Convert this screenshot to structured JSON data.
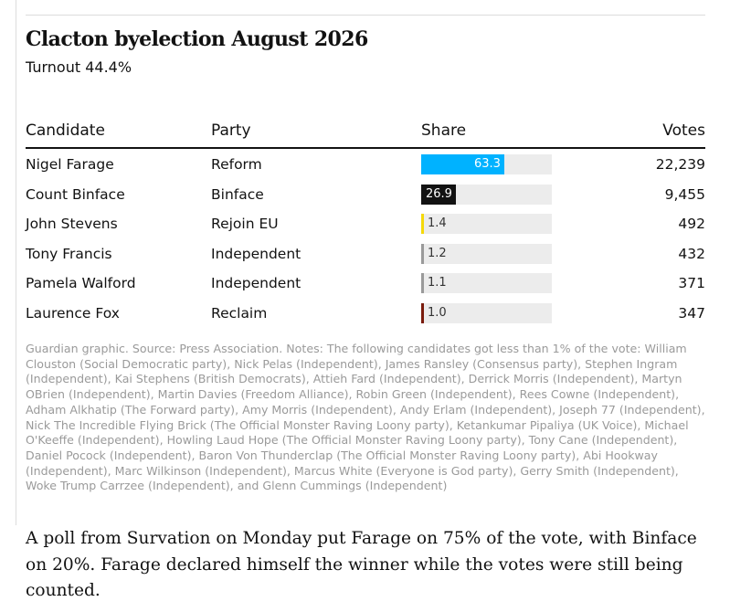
{
  "graphic": {
    "title": "Clacton byelection August 2026",
    "subtitle": "Turnout 44.4%",
    "notes": "Guardian graphic. Source: Press Association. Notes: The following candidates got less than 1% of the vote: William Clouston (Social Democratic party), Nick Pelas (Independent), James Ransley (Consensus party), Stephen Ingram (Independent), Kai Stephens (British Democrats), Attieh Fard (Independent), Derrick Morris (Independent), Martyn OBrien (Independent), Martin Davies (Freedom Alliance), Robin Green (Independent), Rees Cowne (Independent), Adham Alkhatip (The Forward party), Amy Morris (Independent), Andy Erlam (Independent), Joseph 77 (Independent), Nick The Incredible Flying Brick (The Official Monster Raving Loony party), Ketankumar Pipaliya (UK Voice), Michael O'Keeffe (Independent), Howling Laud Hope (The Official Monster Raving Loony party), Tony Cane (Independent), Daniel Pocock (Independent), Baron Von Thunderclap (The Official Monster Raving Loony party), Abi Hookway (Independent), Marc Wilkinson (Independent), Marcus White (Everyone is God party), Gerry Smith (Independent), Woke Trump Carrzee (Independent), and Glenn Cummings (Independent)"
  },
  "chart_data": {
    "type": "table",
    "columns": [
      "Candidate",
      "Party",
      "Share",
      "Votes"
    ],
    "share_max": 100,
    "rows": [
      {
        "candidate": "Nigel Farage",
        "party": "Reform",
        "share": 63.3,
        "share_label": "63.3",
        "votes": "22,239",
        "color": "#00b2ff",
        "label_color": "#ffffff",
        "label_inside": true
      },
      {
        "candidate": "Count Binface",
        "party": "Binface",
        "share": 26.9,
        "share_label": "26.9",
        "votes": "9,455",
        "color": "#121212",
        "label_color": "#ffffff",
        "label_inside": true
      },
      {
        "candidate": "John Stevens",
        "party": "Rejoin EU",
        "share": 1.4,
        "share_label": "1.4",
        "votes": "492",
        "color": "#f5d90a",
        "label_color": "#333333",
        "label_inside": false
      },
      {
        "candidate": "Tony Francis",
        "party": "Independent",
        "share": 1.2,
        "share_label": "1.2",
        "votes": "432",
        "color": "#9a9a9a",
        "label_color": "#333333",
        "label_inside": false
      },
      {
        "candidate": "Pamela Walford",
        "party": "Independent",
        "share": 1.1,
        "share_label": "1.1",
        "votes": "371",
        "color": "#9a9a9a",
        "label_color": "#333333",
        "label_inside": false
      },
      {
        "candidate": "Laurence Fox",
        "party": "Reclaim",
        "share": 1.0,
        "share_label": "1.0",
        "votes": "347",
        "color": "#7a1b0c",
        "label_color": "#333333",
        "label_inside": false
      }
    ]
  },
  "article": {
    "paragraph": "A poll from Survation on Monday put Farage on 75% of the vote, with Binface on 20%. Farage declared himself the winner while the votes were still being counted."
  }
}
